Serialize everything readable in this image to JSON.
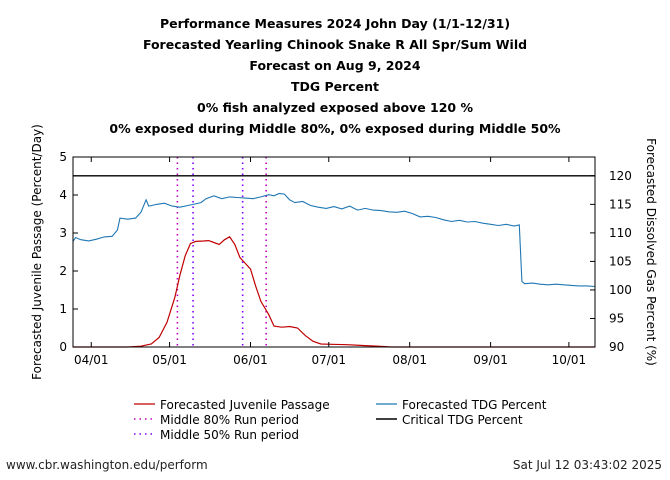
{
  "titles": [
    "Performance Measures 2024 John Day (1/1-12/31)",
    "Forecasted Yearling Chinook Snake R All Spr/Sum Wild",
    "Forecast on Aug 9, 2024",
    "TDG Percent",
    "0% fish analyzed exposed above 120 %",
    "0% exposed during Middle 80%, 0% exposed during Middle 50%"
  ],
  "footer": {
    "left": "www.cbr.washington.edu/perform",
    "right": "Sat Jul 12 03:43:02 2025"
  },
  "colors": {
    "passage": "#c00000",
    "tdg": "#1f77b4",
    "critical": "#000000",
    "mid80": "#c000c0",
    "mid50": "#8000ff"
  },
  "chart_data": {
    "type": "line",
    "ylabel": "Forecasted Juvenile Passage (Percent/Day)",
    "y2label": "Forecasted Dissolved Gas Percent (%)",
    "xlim": [
      "2024-03-25",
      "2024-10-11"
    ],
    "ylim": [
      0,
      5
    ],
    "y2lim": [
      90,
      123.3
    ],
    "xticks": [
      {
        "date": "2024-04-01",
        "label": "04/01"
      },
      {
        "date": "2024-05-01",
        "label": "05/01"
      },
      {
        "date": "2024-06-01",
        "label": "06/01"
      },
      {
        "date": "2024-07-01",
        "label": "07/01"
      },
      {
        "date": "2024-08-01",
        "label": "08/01"
      },
      {
        "date": "2024-09-01",
        "label": "09/01"
      },
      {
        "date": "2024-10-01",
        "label": "10/01"
      }
    ],
    "yticks": [
      0,
      1,
      2,
      3,
      4,
      5
    ],
    "y2ticks": [
      90,
      95,
      100,
      105,
      110,
      115,
      120
    ],
    "legend": {
      "passage": "Forecasted Juvenile Passage",
      "mid80": "Middle 80% Run period",
      "mid50": "Middle 50% Run period",
      "tdg": "Forecasted TDG Percent",
      "critical": "Critical TDG Percent"
    },
    "critical_tdg": 120,
    "middle80": [
      "2024-05-04",
      "2024-06-07"
    ],
    "middle50": [
      "2024-05-10",
      "2024-05-29"
    ],
    "passage": [
      [
        "2024-03-25",
        0
      ],
      [
        "2024-04-15",
        0
      ],
      [
        "2024-04-20",
        0.02
      ],
      [
        "2024-04-24",
        0.08
      ],
      [
        "2024-04-27",
        0.25
      ],
      [
        "2024-04-30",
        0.65
      ],
      [
        "2024-05-03",
        1.3
      ],
      [
        "2024-05-05",
        1.9
      ],
      [
        "2024-05-07",
        2.4
      ],
      [
        "2024-05-09",
        2.72
      ],
      [
        "2024-05-11",
        2.78
      ],
      [
        "2024-05-14",
        2.79
      ],
      [
        "2024-05-16",
        2.8
      ],
      [
        "2024-05-18",
        2.75
      ],
      [
        "2024-05-20",
        2.7
      ],
      [
        "2024-05-22",
        2.82
      ],
      [
        "2024-05-24",
        2.9
      ],
      [
        "2024-05-26",
        2.7
      ],
      [
        "2024-05-28",
        2.35
      ],
      [
        "2024-05-30",
        2.2
      ],
      [
        "2024-06-01",
        2.05
      ],
      [
        "2024-06-03",
        1.6
      ],
      [
        "2024-06-05",
        1.2
      ],
      [
        "2024-06-08",
        0.85
      ],
      [
        "2024-06-10",
        0.55
      ],
      [
        "2024-06-13",
        0.52
      ],
      [
        "2024-06-16",
        0.54
      ],
      [
        "2024-06-19",
        0.5
      ],
      [
        "2024-06-22",
        0.3
      ],
      [
        "2024-06-25",
        0.15
      ],
      [
        "2024-06-28",
        0.08
      ],
      [
        "2024-07-02",
        0.07
      ],
      [
        "2024-07-08",
        0.06
      ],
      [
        "2024-07-14",
        0.04
      ],
      [
        "2024-07-20",
        0.02
      ],
      [
        "2024-07-25",
        0
      ],
      [
        "2024-10-11",
        0
      ]
    ],
    "tdg": [
      [
        "2024-03-25",
        108.5
      ],
      [
        "2024-03-26",
        109.2
      ],
      [
        "2024-03-28",
        108.8
      ],
      [
        "2024-03-31",
        108.6
      ],
      [
        "2024-04-03",
        108.9
      ],
      [
        "2024-04-06",
        109.3
      ],
      [
        "2024-04-09",
        109.4
      ],
      [
        "2024-04-11",
        110.5
      ],
      [
        "2024-04-12",
        112.6
      ],
      [
        "2024-04-15",
        112.4
      ],
      [
        "2024-04-18",
        112.6
      ],
      [
        "2024-04-20",
        113.6
      ],
      [
        "2024-04-22",
        115.8
      ],
      [
        "2024-04-23",
        114.7
      ],
      [
        "2024-04-26",
        115.0
      ],
      [
        "2024-04-29",
        115.2
      ],
      [
        "2024-05-02",
        114.7
      ],
      [
        "2024-05-05",
        114.5
      ],
      [
        "2024-05-08",
        114.8
      ],
      [
        "2024-05-10",
        115.0
      ],
      [
        "2024-05-13",
        115.3
      ],
      [
        "2024-05-15",
        116.0
      ],
      [
        "2024-05-18",
        116.5
      ],
      [
        "2024-05-21",
        116.0
      ],
      [
        "2024-05-24",
        116.3
      ],
      [
        "2024-05-27",
        116.2
      ],
      [
        "2024-05-30",
        116.1
      ],
      [
        "2024-06-02",
        116.0
      ],
      [
        "2024-06-05",
        116.3
      ],
      [
        "2024-06-08",
        116.7
      ],
      [
        "2024-06-10",
        116.5
      ],
      [
        "2024-06-12",
        116.9
      ],
      [
        "2024-06-14",
        116.8
      ],
      [
        "2024-06-16",
        115.8
      ],
      [
        "2024-06-18",
        115.3
      ],
      [
        "2024-06-21",
        115.5
      ],
      [
        "2024-06-24",
        114.8
      ],
      [
        "2024-06-27",
        114.5
      ],
      [
        "2024-06-30",
        114.3
      ],
      [
        "2024-07-03",
        114.6
      ],
      [
        "2024-07-06",
        114.2
      ],
      [
        "2024-07-09",
        114.7
      ],
      [
        "2024-07-12",
        114.0
      ],
      [
        "2024-07-15",
        114.3
      ],
      [
        "2024-07-18",
        114.0
      ],
      [
        "2024-07-21",
        113.9
      ],
      [
        "2024-07-24",
        113.7
      ],
      [
        "2024-07-27",
        113.6
      ],
      [
        "2024-07-30",
        113.8
      ],
      [
        "2024-08-02",
        113.4
      ],
      [
        "2024-08-05",
        112.8
      ],
      [
        "2024-08-08",
        112.9
      ],
      [
        "2024-08-11",
        112.7
      ],
      [
        "2024-08-14",
        112.3
      ],
      [
        "2024-08-17",
        112.0
      ],
      [
        "2024-08-20",
        112.2
      ],
      [
        "2024-08-23",
        111.9
      ],
      [
        "2024-08-26",
        112.0
      ],
      [
        "2024-08-29",
        111.7
      ],
      [
        "2024-09-01",
        111.5
      ],
      [
        "2024-09-04",
        111.3
      ],
      [
        "2024-09-07",
        111.5
      ],
      [
        "2024-09-10",
        111.2
      ],
      [
        "2024-09-12",
        111.4
      ],
      [
        "2024-09-13",
        101.5
      ],
      [
        "2024-09-14",
        101.1
      ],
      [
        "2024-09-17",
        101.2
      ],
      [
        "2024-09-20",
        101.0
      ],
      [
        "2024-09-23",
        100.9
      ],
      [
        "2024-09-26",
        101.0
      ],
      [
        "2024-09-29",
        100.9
      ],
      [
        "2024-10-02",
        100.8
      ],
      [
        "2024-10-05",
        100.7
      ],
      [
        "2024-10-08",
        100.7
      ],
      [
        "2024-10-11",
        100.6
      ]
    ]
  }
}
